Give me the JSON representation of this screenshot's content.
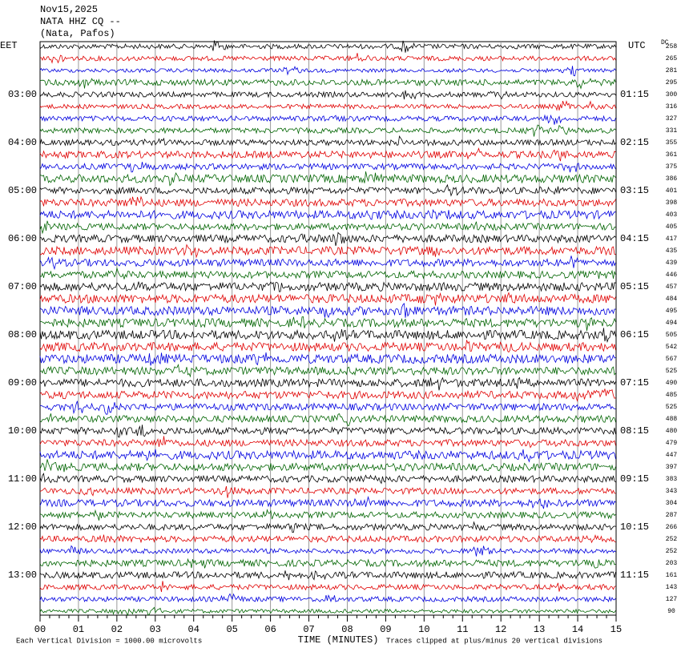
{
  "header": {
    "date": "Nov15,2025",
    "station": "NATA HHZ CQ --",
    "location": "(Nata, Pafos)"
  },
  "left_zone": "EET",
  "right_zone": "UTC",
  "dc_label": "DC",
  "trace_colors": [
    "#000000",
    "#e00000",
    "#0000e0",
    "#006400"
  ],
  "left_times": [
    "03:00",
    "04:00",
    "05:00",
    "06:00",
    "07:00",
    "08:00",
    "09:00",
    "10:00",
    "11:00",
    "12:00",
    "13:00"
  ],
  "right_times": [
    "01:15",
    "02:15",
    "03:15",
    "04:15",
    "05:15",
    "06:15",
    "07:15",
    "08:15",
    "09:15",
    "10:15",
    "11:15"
  ],
  "dc_values": [
    258,
    265,
    281,
    295,
    300,
    316,
    327,
    331,
    355,
    361,
    375,
    386,
    401,
    398,
    403,
    405,
    417,
    435,
    439,
    446,
    457,
    484,
    495,
    494,
    505,
    542,
    567,
    525,
    490,
    485,
    525,
    488,
    480,
    479,
    447,
    397,
    383,
    343,
    304,
    287,
    266,
    252,
    252,
    203,
    161,
    143,
    127,
    90
  ],
  "x_ticks": [
    "00",
    "01",
    "02",
    "03",
    "04",
    "05",
    "06",
    "07",
    "08",
    "09",
    "10",
    "11",
    "12",
    "13",
    "14",
    "15"
  ],
  "x_label": "TIME (MINUTES)",
  "footer_left": "Each Vertical Division = 1000.00 microvolts",
  "footer_right": "Traces clipped at plus/minus 20 vertical divisions"
}
